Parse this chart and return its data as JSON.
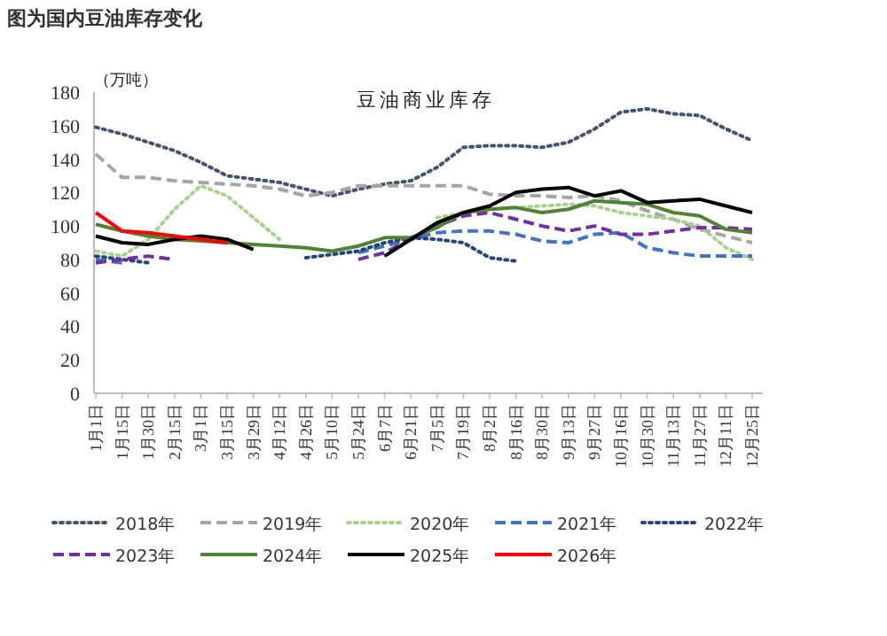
{
  "chart_data": {
    "type": "line",
    "title": "图为国内豆油库存变化",
    "subtitle": "豆油商业库存",
    "ylabel": "（万吨）",
    "categories": [
      "1月1日",
      "1月15日",
      "1月30日",
      "2月15日",
      "3月1日",
      "3月15日",
      "3月29日",
      "4月12日",
      "4月26日",
      "5月10日",
      "5月24日",
      "6月7日",
      "6月21日",
      "7月5日",
      "7月19日",
      "8月2日",
      "8月16日",
      "8月30日",
      "9月13日",
      "9月27日",
      "10月16日",
      "10月30日",
      "11月13日",
      "11月27日",
      "12月11日",
      "12月25日"
    ],
    "ylim": [
      0,
      180
    ],
    "yticks": [
      0,
      20,
      40,
      60,
      80,
      100,
      120,
      140,
      160,
      180
    ],
    "legend": "bottom",
    "marker": "none",
    "series": [
      {
        "name": "2018年",
        "color": "#44546a",
        "line_style": "dotted",
        "values": [
          159,
          155,
          150,
          145,
          138,
          130,
          128,
          126,
          122,
          118,
          122,
          125,
          127,
          135,
          147,
          148,
          148,
          147,
          150,
          158,
          168,
          170,
          167,
          166,
          158,
          151
        ]
      },
      {
        "name": "2019年",
        "color": "#a5a5a5",
        "line_style": "dashed",
        "values": [
          143,
          129,
          129,
          127,
          126,
          125,
          124,
          122,
          118,
          120,
          124,
          124,
          124,
          124,
          124,
          119,
          118,
          118,
          117,
          118,
          115,
          109,
          104,
          98,
          94,
          90
        ]
      },
      {
        "name": "2020年",
        "color": "#a9d18e",
        "line_style": "dotted",
        "values": [
          85,
          82,
          92,
          110,
          124,
          118,
          105,
          92,
          null,
          null,
          null,
          null,
          null,
          105,
          108,
          110,
          111,
          112,
          113,
          112,
          108,
          106,
          104,
          100,
          87,
          80
        ]
      },
      {
        "name": "2021年",
        "color": "#4472c4",
        "line_style": "dashed",
        "values": [
          80,
          78,
          null,
          null,
          null,
          null,
          null,
          null,
          null,
          null,
          84,
          88,
          92,
          96,
          97,
          97,
          95,
          91,
          90,
          95,
          96,
          87,
          84,
          82,
          82,
          82
        ]
      },
      {
        "name": "2022年",
        "color": "#264478",
        "line_style": "dotted",
        "values": [
          82,
          80,
          78,
          null,
          null,
          null,
          null,
          null,
          81,
          83,
          85,
          90,
          93,
          92,
          90,
          81,
          79,
          null,
          null,
          null,
          null,
          null,
          null,
          null,
          null,
          null
        ]
      },
      {
        "name": "2023年",
        "color": "#7030a0",
        "line_style": "dashed",
        "values": [
          78,
          80,
          82,
          80,
          null,
          null,
          null,
          null,
          null,
          null,
          80,
          84,
          92,
          100,
          106,
          108,
          104,
          100,
          97,
          100,
          95,
          95,
          97,
          99,
          99,
          98
        ]
      },
      {
        "name": "2024年",
        "color": "#548235",
        "line_style": "solid",
        "values": [
          101,
          97,
          94,
          92,
          91,
          90,
          89,
          88,
          87,
          85,
          88,
          93,
          93,
          99,
          108,
          110,
          111,
          108,
          110,
          115,
          114,
          113,
          108,
          106,
          98,
          96
        ]
      },
      {
        "name": "2025年",
        "color": "#000000",
        "line_style": "solid",
        "values": [
          94,
          90,
          89,
          92,
          94,
          92,
          86,
          null,
          null,
          null,
          null,
          82,
          92,
          102,
          108,
          112,
          120,
          122,
          123,
          118,
          121,
          114,
          115,
          116,
          112,
          108
        ]
      },
      {
        "name": "2026年",
        "color": "#ff0000",
        "line_style": "solid",
        "values": [
          108,
          97,
          96,
          94,
          92,
          90,
          null,
          null,
          null,
          null,
          null,
          null,
          null,
          null,
          null,
          null,
          null,
          null,
          null,
          null,
          null,
          null,
          null,
          null,
          null,
          null
        ]
      }
    ]
  }
}
